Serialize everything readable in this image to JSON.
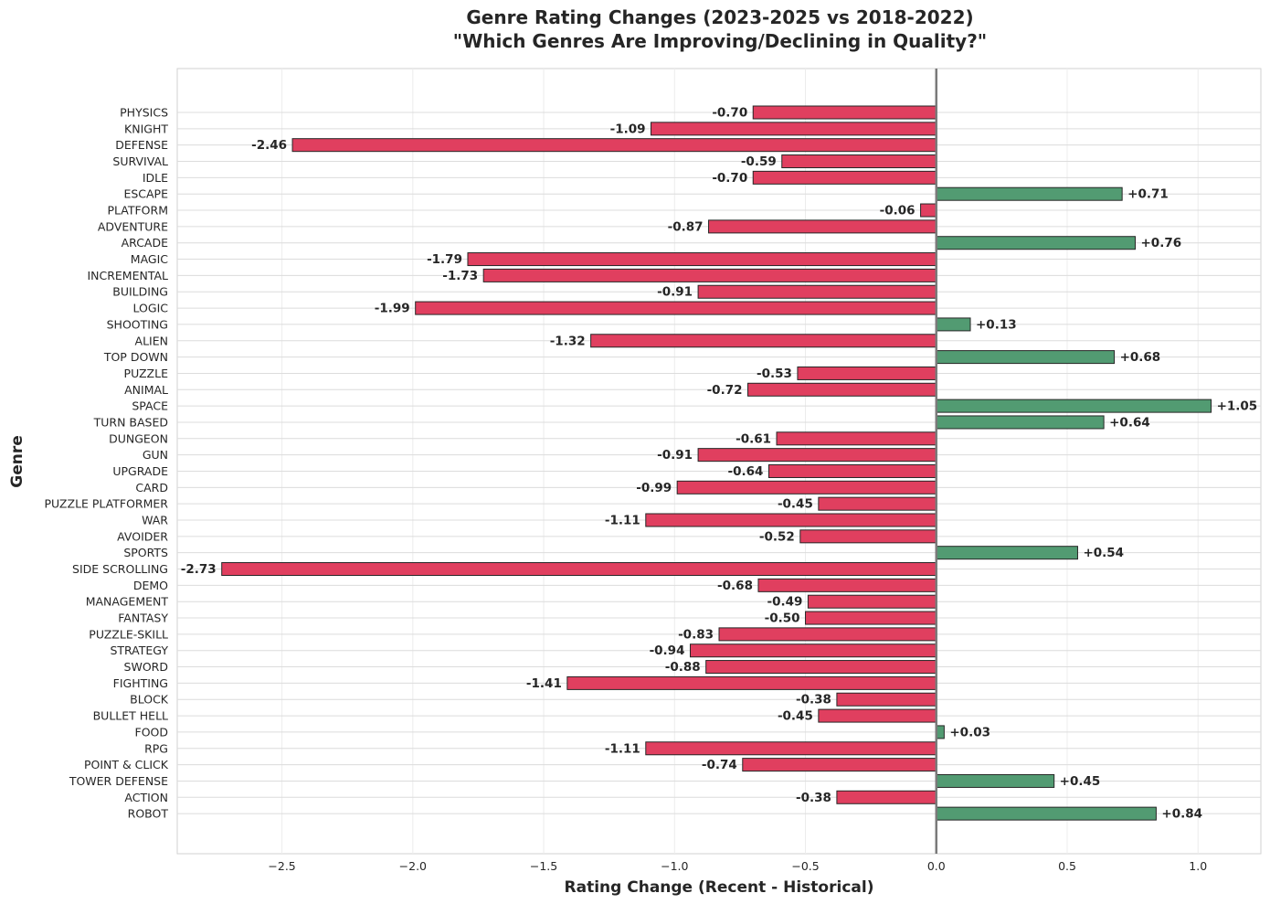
{
  "chart_data": {
    "type": "bar",
    "orientation": "horizontal",
    "title": "Genre Rating Changes (2023-2025 vs 2018-2022)",
    "subtitle": "\"Which Genres Are Improving/Declining in Quality?\"",
    "xlabel": "Rating Change (Recent - Historical)",
    "ylabel": "Genre",
    "xlim": [
      -2.9,
      1.24
    ],
    "xticks": [
      -2.5,
      -2.0,
      -1.5,
      -1.0,
      -0.5,
      0.0,
      0.5,
      1.0
    ],
    "xtick_labels": [
      "−2.5",
      "−2.0",
      "−1.5",
      "−1.0",
      "−0.5",
      "0.0",
      "0.5",
      "1.0"
    ],
    "grid": true,
    "colors": {
      "positive": "#529b72",
      "negative": "#e03f5f",
      "edge": "#262626",
      "zero_line": "#7a7a7a",
      "grid": "#dcdcdc",
      "frame": "#d2d2d2"
    },
    "categories": [
      "PHYSICS",
      "KNIGHT",
      "DEFENSE",
      "SURVIVAL",
      "IDLE",
      "ESCAPE",
      "PLATFORM",
      "ADVENTURE",
      "ARCADE",
      "MAGIC",
      "INCREMENTAL",
      "BUILDING",
      "LOGIC",
      "SHOOTING",
      "ALIEN",
      "TOP DOWN",
      "PUZZLE",
      "ANIMAL",
      "SPACE",
      "TURN BASED",
      "DUNGEON",
      "GUN",
      "UPGRADE",
      "CARD",
      "PUZZLE PLATFORMER",
      "WAR",
      "AVOIDER",
      "SPORTS",
      "SIDE SCROLLING",
      "DEMO",
      "MANAGEMENT",
      "FANTASY",
      "PUZZLE-SKILL",
      "STRATEGY",
      "SWORD",
      "FIGHTING",
      "BLOCK",
      "BULLET HELL",
      "FOOD",
      "RPG",
      "POINT & CLICK",
      "TOWER DEFENSE",
      "ACTION",
      "ROBOT"
    ],
    "values": [
      -0.7,
      -1.09,
      -2.46,
      -0.59,
      -0.7,
      0.71,
      -0.06,
      -0.87,
      0.76,
      -1.79,
      -1.73,
      -0.91,
      -1.99,
      0.13,
      -1.32,
      0.68,
      -0.53,
      -0.72,
      1.05,
      0.64,
      -0.61,
      -0.91,
      -0.64,
      -0.99,
      -0.45,
      -1.11,
      -0.52,
      0.54,
      -2.73,
      -0.68,
      -0.49,
      -0.5,
      -0.83,
      -0.94,
      -0.88,
      -1.41,
      -0.38,
      -0.45,
      0.03,
      -1.11,
      -0.74,
      0.45,
      -0.38,
      0.84
    ],
    "value_labels": [
      "-0.70",
      "-1.09",
      "-2.46",
      "-0.59",
      "-0.70",
      "+0.71",
      "-0.06",
      "-0.87",
      "+0.76",
      "-1.79",
      "-1.73",
      "-0.91",
      "-1.99",
      "+0.13",
      "-1.32",
      "+0.68",
      "-0.53",
      "-0.72",
      "+1.05",
      "+0.64",
      "-0.61",
      "-0.91",
      "-0.64",
      "-0.99",
      "-0.45",
      "-1.11",
      "-0.52",
      "+0.54",
      "-2.73",
      "-0.68",
      "-0.49",
      "-0.50",
      "-0.83",
      "-0.94",
      "-0.88",
      "-1.41",
      "-0.38",
      "-0.45",
      "+0.03",
      "-1.11",
      "-0.74",
      "+0.45",
      "-0.38",
      "+0.84"
    ]
  }
}
